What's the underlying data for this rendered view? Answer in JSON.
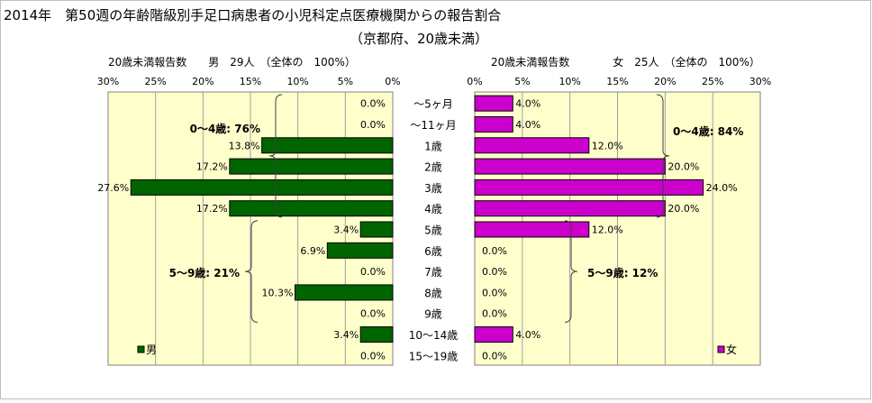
{
  "chart_data": {
    "type": "bar",
    "title": "2014年　第50週の年齢階級別手足口病患者の小児科定点医療機関からの報告割合",
    "subtitle": "（京都府、20歳未満）",
    "categories": [
      "～5ヶ月",
      "～11ヶ月",
      "1歳",
      "2歳",
      "3歳",
      "4歳",
      "5歳",
      "6歳",
      "7歳",
      "8歳",
      "9歳",
      "10～14歳",
      "15～19歳"
    ],
    "xlim": [
      0,
      30
    ],
    "ticks": [
      "30%",
      "25%",
      "20%",
      "15%",
      "10%",
      "5%",
      "0%"
    ],
    "ticks_right": [
      "0%",
      "5%",
      "10%",
      "15%",
      "20%",
      "25%",
      "30%"
    ],
    "series": [
      {
        "name": "男",
        "header": "20歳未満報告数　　男　29人　（全体の　100%）",
        "values": [
          0.0,
          0.0,
          13.8,
          17.2,
          27.6,
          17.2,
          3.4,
          6.9,
          0.0,
          10.3,
          0.0,
          3.4,
          0.0
        ],
        "labels": [
          "0.0%",
          "0.0%",
          "13.8%",
          "17.2%",
          "27.6%",
          "17.2%",
          "3.4%",
          "6.9%",
          "0.0%",
          "10.3%",
          "0.0%",
          "3.4%",
          "0.0%"
        ],
        "legend": "男",
        "color": "#006400",
        "groups": [
          {
            "label": "0～4歳: 76%",
            "from": 0,
            "to": 5
          },
          {
            "label": "5～9歳: 21%",
            "from": 6,
            "to": 10
          }
        ]
      },
      {
        "name": "女",
        "header": "20歳未満報告数　　　　女　25人　（全体の　100%）",
        "values": [
          4.0,
          4.0,
          12.0,
          20.0,
          24.0,
          20.0,
          12.0,
          0.0,
          0.0,
          0.0,
          0.0,
          4.0,
          0.0
        ],
        "labels": [
          "4.0%",
          "4.0%",
          "12.0%",
          "20.0%",
          "24.0%",
          "20.0%",
          "12.0%",
          "0.0%",
          "0.0%",
          "0.0%",
          "0.0%",
          "4.0%",
          "0.0%"
        ],
        "legend": "女",
        "color": "#CC00CC",
        "groups": [
          {
            "label": "0～4歳: 84%",
            "from": 0,
            "to": 5
          },
          {
            "label": "5～9歳: 12%",
            "from": 6,
            "to": 10
          }
        ]
      }
    ],
    "grid": true,
    "legend_placement": "bottom-left (男), bottom-right (女)"
  }
}
